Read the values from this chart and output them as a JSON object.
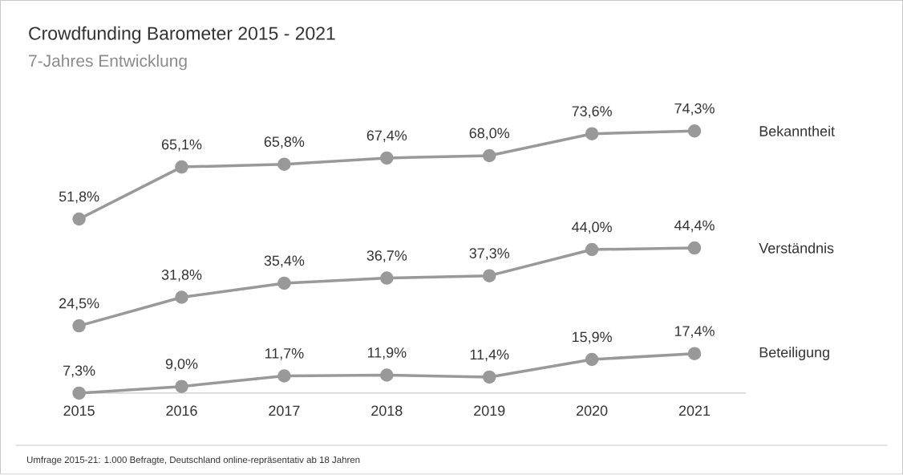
{
  "chart_data": {
    "type": "line",
    "title": "Crowdfunding Barometer 2015 - 2021",
    "subtitle": "7-Jahres Entwicklung",
    "categories": [
      "2015",
      "2016",
      "2017",
      "2018",
      "2019",
      "2020",
      "2021"
    ],
    "series": [
      {
        "name": "Bekanntheit",
        "color": "#999999",
        "values": [
          51.8,
          65.1,
          65.8,
          67.4,
          68.0,
          73.6,
          74.3
        ],
        "value_labels": [
          "51,8%",
          "65,1%",
          "65,8%",
          "67,4%",
          "68,0%",
          "73,6%",
          "74,3%"
        ]
      },
      {
        "name": "Verständnis",
        "color": "#999999",
        "values": [
          24.5,
          31.8,
          35.4,
          36.7,
          37.3,
          44.0,
          44.4
        ],
        "value_labels": [
          "24,5%",
          "31,8%",
          "35,4%",
          "36,7%",
          "37,3%",
          "44,0%",
          "44,4%"
        ]
      },
      {
        "name": "Beteiligung",
        "color": "#999999",
        "values": [
          7.3,
          9.0,
          11.7,
          11.9,
          11.4,
          15.9,
          17.4
        ],
        "value_labels": [
          "7,3%",
          "9,0%",
          "11,7%",
          "11,9%",
          "11,4%",
          "15,9%",
          "17,4%"
        ]
      }
    ],
    "marker": "circle",
    "annotations": [
      "Umfrage 2015-21: 1.000 Befragte, Deutschland online-repräsentativ ab 18 Jahren"
    ]
  }
}
